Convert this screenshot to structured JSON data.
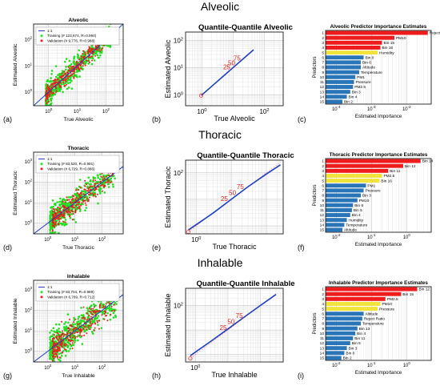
{
  "figure": {
    "rows": [
      {
        "heading": "Alveolic",
        "scatter": {
          "letter": "(a)",
          "title": "Alveolic",
          "xlabel": "True Alveolic",
          "ylabel": "Estimated Alveolic",
          "xticks": [
            "10^0",
            "10^1",
            "10^2"
          ],
          "yticks": [
            "10^0",
            "10^1",
            "10^2"
          ],
          "legend": [
            "1:1",
            "Training (# 123,674, R=0.994)",
            "Validation (# 9,776, R=0.988)"
          ]
        },
        "qq": {
          "letter": "(b)",
          "title": "Quantile-Quantile Alveolic",
          "xlabel": "True Alveolic",
          "ylabel": "Estimated Alveolic",
          "xticks": [
            "10^0",
            "10^2"
          ],
          "yticks": [
            "10^0",
            "10^1",
            "10^2"
          ],
          "pct": [
            "0",
            "25",
            "50",
            "75"
          ]
        },
        "bars": {
          "letter": "(c)",
          "title": "Alveolic Predictor Importance Estimates",
          "xlabel": "Estimated Importance",
          "ylabel": "Predictors",
          "xticks": [
            "10^-4",
            "10^-3",
            "10^-2"
          ],
          "ranks": [
            "1",
            "2",
            "3",
            "4",
            "5",
            "6",
            "7",
            "8",
            "9",
            "10",
            "11",
            "12",
            "13",
            "14",
            "15"
          ],
          "labels": [
            "Reject Ratio",
            "PM10",
            "Bin 15",
            "Bin 16",
            "Humidity",
            "Bin 0",
            "Bin 6",
            "Altitude",
            "Temperature",
            "PM1",
            "Pressure",
            "PM2.5",
            "Bin 3",
            "Bin 4",
            "Bin 2"
          ]
        }
      },
      {
        "heading": "Thoracic",
        "scatter": {
          "letter": "(d)",
          "title": "Thoracic",
          "xlabel": "True Thoracic",
          "ylabel": "Estimated Thoracic",
          "xticks": [
            "10^0",
            "10^1",
            "10^2"
          ],
          "yticks": [
            "10^0",
            "10^1",
            "10^2",
            "10^3"
          ],
          "legend": [
            "1:1",
            "Training (# 83,520, R=0.991)",
            "Validation (# 6,729, R=0.886)"
          ]
        },
        "qq": {
          "letter": "(e)",
          "title": "Quantile-Quantile Thoracic",
          "xlabel": "True Thoracic",
          "ylabel": "Estimated Thoracic",
          "xticks": [
            "10^0"
          ],
          "yticks": [
            "10^2"
          ],
          "pct": [
            "0",
            "25",
            "50",
            "75"
          ]
        },
        "bars": {
          "letter": "(f)",
          "title": "Thoracic Predictor Importance Estimates",
          "xlabel": "Estimated Importance",
          "ylabel": "Predictors",
          "xticks": [
            "10^-2",
            "10^-1",
            "10^0"
          ],
          "ranks": [
            "1",
            "2",
            "3",
            "4",
            "5",
            "6",
            "7",
            "8",
            "9",
            "10",
            "11",
            "12",
            "13",
            "14",
            "15"
          ],
          "labels": [
            "Bin 14",
            "Bin 12",
            "Bin 11",
            "PM2.5",
            "Bin 16",
            "PM1",
            "Pressure",
            "Bin 3",
            "PM10",
            "Bin 6",
            "Bin 5",
            "Bin 4",
            "Humidity",
            "Temperature",
            "Altitude"
          ]
        }
      },
      {
        "heading": "Inhalable",
        "scatter": {
          "letter": "(g)",
          "title": "Inhalable",
          "xlabel": "True Inhalable",
          "ylabel": "Estimated Inhalable",
          "xticks": [
            "10^0",
            "10^1",
            "10^2"
          ],
          "yticks": [
            "10^0",
            "10^1",
            "10^2",
            "10^3"
          ],
          "legend": [
            "1:1",
            "Training (# 83,704, R=0.989)",
            "Validation (# 6,769, R=0.712)"
          ]
        },
        "qq": {
          "letter": "(h)",
          "title": "Quantile-Quantile Inhalable",
          "xlabel": "True Inhalable",
          "ylabel": "Estimated Inhalable",
          "xticks": [
            "10^0"
          ],
          "yticks": [
            "10^2"
          ],
          "pct": [
            "0",
            "25",
            "50",
            "75"
          ]
        },
        "bars": {
          "letter": "(i)",
          "title": "Inhalable Predictor Importance Estimates",
          "xlabel": "Estimated Importance",
          "ylabel": "Predictors",
          "xticks": [
            "10^-2",
            "10^-1",
            "10^0"
          ],
          "ranks": [
            "1",
            "2",
            "3",
            "4",
            "5",
            "6",
            "7",
            "8",
            "9",
            "10",
            "11",
            "12",
            "13",
            "14",
            "15"
          ],
          "labels": [
            "Bin 12",
            "Bin 15",
            "PM2.5",
            "PM10",
            "Pressure",
            "Altitude",
            "Reject Ratio",
            "Temperature",
            "Bin 13",
            "Bin 4",
            "Bin 11",
            "Bin 5",
            "Bin 3",
            "Bin 0",
            "Bin 2"
          ]
        }
      }
    ]
  },
  "chart_data": [
    {
      "type": "scatter",
      "panel": "(a)",
      "title": "Alveolic",
      "xlabel": "True Alveolic",
      "ylabel": "Estimated Alveolic",
      "log_scale": true,
      "xlim": [
        0.3,
        400
      ],
      "ylim": [
        0.3,
        400
      ],
      "series": [
        {
          "name": "1:1",
          "kind": "line",
          "x": [
            0.3,
            400
          ],
          "y": [
            0.3,
            400
          ],
          "color": "#1f3fbf"
        },
        {
          "name": "Training (# 123,674, R=0.994)",
          "kind": "points",
          "center_range": [
            0.8,
            150
          ],
          "spread_decades": 0.22,
          "color": "#22dd22"
        },
        {
          "name": "Validation (# 9,776, R=0.988)",
          "kind": "points",
          "center_range": [
            0.8,
            100
          ],
          "spread_decades": 0.15,
          "color": "#ee1c1c"
        }
      ],
      "legend": "top-left",
      "grid": true
    },
    {
      "type": "line",
      "panel": "(b)",
      "title": "Quantile-Quantile Alveolic",
      "xlabel": "True Alveolic",
      "ylabel": "Estimated Alveolic",
      "log_scale": true,
      "xlim": [
        0.3,
        400
      ],
      "ylim": [
        0.4,
        200
      ],
      "series": [
        {
          "name": "",
          "x": [
            0.95,
            2,
            5,
            10,
            20,
            45
          ],
          "y": [
            0.95,
            2,
            5,
            10,
            20,
            45
          ],
          "color": "#1f3fbf"
        }
      ],
      "percentile_marks": [
        {
          "label": "0",
          "value": 0.95
        },
        {
          "label": "25",
          "value": 7
        },
        {
          "label": "50",
          "value": 10
        },
        {
          "label": "75",
          "value": 15
        }
      ],
      "grid": true
    },
    {
      "type": "bar",
      "panel": "(c)",
      "title": "Alveolic Predictor Importance Estimates",
      "xlabel": "Estimated Importance",
      "ylabel": "Predictors",
      "log_scale": true,
      "xlim": [
        5e-05,
        0.05
      ],
      "categories": [
        "Reject Ratio",
        "PM10",
        "Bin 15",
        "Bin 16",
        "Humidity",
        "Bin 0",
        "Bin 6",
        "Altitude",
        "Temperature",
        "PM1",
        "Pressure",
        "PM2.5",
        "Bin 3",
        "Bin 4",
        "Bin 2"
      ],
      "values": [
        0.04,
        0.0045,
        0.002,
        0.0018,
        0.0015,
        0.0006,
        0.0005,
        0.0005,
        0.00045,
        0.00035,
        0.00032,
        0.0003,
        0.00025,
        0.0002,
        0.00015
      ],
      "colors": [
        "#ee1c1c",
        "#ee1c1c",
        "#ee1c1c",
        "#ee1c1c",
        "#f2e23c",
        "#2a74b8",
        "#2a74b8",
        "#2a74b8",
        "#2a74b8",
        "#2a74b8",
        "#2a74b8",
        "#2a74b8",
        "#2a74b8",
        "#2a74b8",
        "#2a74b8"
      ]
    },
    {
      "type": "scatter",
      "panel": "(d)",
      "title": "Thoracic",
      "xlabel": "True Thoracic",
      "ylabel": "Estimated Thoracic",
      "log_scale": true,
      "xlim": [
        0.3,
        600
      ],
      "ylim": [
        0.3,
        3000
      ],
      "series": [
        {
          "name": "1:1",
          "kind": "line",
          "x": [
            0.3,
            600
          ],
          "y": [
            0.3,
            600
          ],
          "color": "#1f3fbf"
        },
        {
          "name": "Training (# 83,520, R=0.991)",
          "kind": "points",
          "center_range": [
            1.2,
            300
          ],
          "spread_decades": 0.32,
          "color": "#22dd22"
        },
        {
          "name": "Validation (# 6,729, R=0.886)",
          "kind": "points",
          "center_range": [
            1.5,
            250
          ],
          "spread_decades": 0.25,
          "color": "#ee1c1c"
        }
      ],
      "legend": "top-left",
      "grid": true
    },
    {
      "type": "line",
      "panel": "(e)",
      "title": "Quantile-Quantile Thoracic",
      "xlabel": "True Thoracic",
      "ylabel": "Estimated Thoracic",
      "log_scale": true,
      "xlim": [
        0.5,
        300
      ],
      "ylim": [
        0.5,
        300
      ],
      "series": [
        {
          "name": "",
          "x": [
            0.6,
            3,
            10,
            30,
            100,
            250
          ],
          "y": [
            0.7,
            3,
            10,
            30,
            90,
            200
          ],
          "color": "#1f3fbf"
        }
      ],
      "percentile_marks": [
        {
          "label": "0",
          "value": 0.6
        },
        {
          "label": "25",
          "value": 7
        },
        {
          "label": "50",
          "value": 12
        },
        {
          "label": "75",
          "value": 20
        }
      ],
      "grid": true
    },
    {
      "type": "bar",
      "panel": "(f)",
      "title": "Thoracic Predictor Importance Estimates",
      "xlabel": "Estimated Importance",
      "ylabel": "Predictors",
      "log_scale": true,
      "xlim": [
        0.005,
        5
      ],
      "categories": [
        "Bin 14",
        "Bin 12",
        "Bin 11",
        "PM2.5",
        "Bin 16",
        "PM1",
        "Pressure",
        "Bin 3",
        "PM10",
        "Bin 6",
        "Bin 5",
        "Bin 4",
        "Humidity",
        "Temperature",
        "Altitude"
      ],
      "values": [
        2.5,
        0.8,
        0.3,
        0.2,
        0.17,
        0.07,
        0.06,
        0.05,
        0.04,
        0.03,
        0.028,
        0.025,
        0.02,
        0.017,
        0.015
      ],
      "colors": [
        "#ee1c1c",
        "#ee1c1c",
        "#ee1c1c",
        "#f2e23c",
        "#f2e23c",
        "#2a74b8",
        "#2a74b8",
        "#2a74b8",
        "#2a74b8",
        "#2a74b8",
        "#2a74b8",
        "#2a74b8",
        "#2a74b8",
        "#2a74b8",
        "#2a74b8"
      ]
    },
    {
      "type": "scatter",
      "panel": "(g)",
      "title": "Inhalable",
      "xlabel": "True Inhalable",
      "ylabel": "Estimated Inhalable",
      "log_scale": true,
      "xlim": [
        0.3,
        600
      ],
      "ylim": [
        0.3,
        3000
      ],
      "series": [
        {
          "name": "1:1",
          "kind": "line",
          "x": [
            0.3,
            600
          ],
          "y": [
            0.3,
            600
          ],
          "color": "#1f3fbf"
        },
        {
          "name": "Training (# 83,704, R=0.989)",
          "kind": "points",
          "center_range": [
            1.2,
            350
          ],
          "spread_decades": 0.38,
          "color": "#22dd22"
        },
        {
          "name": "Validation (# 6,769, R=0.712)",
          "kind": "points",
          "center_range": [
            1.5,
            300
          ],
          "spread_decades": 0.32,
          "color": "#ee1c1c"
        }
      ],
      "legend": "top-left",
      "grid": true
    },
    {
      "type": "line",
      "panel": "(h)",
      "title": "Quantile-Quantile Inhalable",
      "xlabel": "True Inhalable",
      "ylabel": "Estimated Inhalable",
      "log_scale": true,
      "xlim": [
        0.5,
        500
      ],
      "ylim": [
        0.5,
        500
      ],
      "series": [
        {
          "name": "",
          "x": [
            0.7,
            3,
            10,
            30,
            100,
            300
          ],
          "y": [
            0.9,
            3.5,
            11,
            32,
            100,
            280
          ],
          "color": "#1f3fbf"
        }
      ],
      "percentile_marks": [
        {
          "label": "0",
          "value": 0.7
        },
        {
          "label": "25",
          "value": 8
        },
        {
          "label": "50",
          "value": 14
        },
        {
          "label": "75",
          "value": 25
        }
      ],
      "grid": true
    },
    {
      "type": "bar",
      "panel": "(i)",
      "title": "Inhalable Predictor Importance Estimates",
      "xlabel": "Estimated Importance",
      "ylabel": "Predictors",
      "log_scale": true,
      "xlim": [
        0.005,
        5
      ],
      "categories": [
        "Bin 12",
        "Bin 15",
        "PM2.5",
        "PM10",
        "Pressure",
        "Altitude",
        "Reject Ratio",
        "Temperature",
        "Bin 13",
        "Bin 4",
        "Bin 11",
        "Bin 5",
        "Bin 3",
        "Bin 0",
        "Bin 2"
      ],
      "values": [
        2.0,
        0.7,
        0.25,
        0.18,
        0.15,
        0.06,
        0.055,
        0.05,
        0.04,
        0.035,
        0.03,
        0.025,
        0.02,
        0.017,
        0.014
      ],
      "colors": [
        "#ee1c1c",
        "#ee1c1c",
        "#ee1c1c",
        "#f2e23c",
        "#f2e23c",
        "#2a74b8",
        "#2a74b8",
        "#2a74b8",
        "#2a74b8",
        "#2a74b8",
        "#2a74b8",
        "#2a74b8",
        "#2a74b8",
        "#2a74b8",
        "#2a74b8"
      ]
    }
  ]
}
